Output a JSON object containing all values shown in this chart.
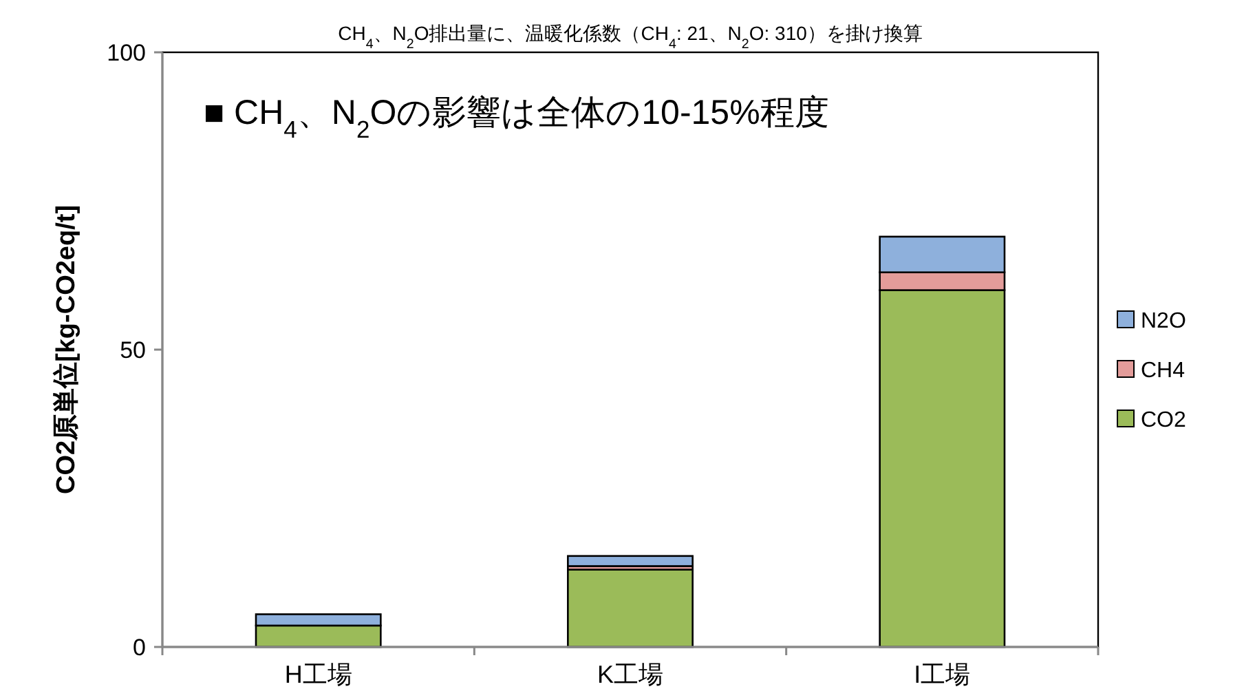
{
  "chart_data": {
    "type": "bar",
    "stacked": true,
    "title": "CH$_{4}$、N$_{2}$O排出量に、温暖化係数（CH$_{4}$: 21、N$_{2}$O: 310）を掛け換算",
    "ylabel": "CO2原単位[kg-CO2eq/t]",
    "categories": [
      "H工場",
      "K工場",
      "I工場"
    ],
    "series": [
      {
        "name": "CO2",
        "color": "#9bbb59",
        "values": [
          3.6,
          13.0,
          60.0
        ]
      },
      {
        "name": "CH4",
        "color": "#e39c9a",
        "values": [
          null,
          0.6,
          3.0
        ]
      },
      {
        "name": "N2O",
        "color": "#8eb0dc",
        "values": [
          1.9,
          1.7,
          6.0
        ]
      }
    ],
    "ylim": [
      0,
      100
    ],
    "yticks": [
      0,
      50,
      100
    ],
    "legend": "right",
    "annotations": [
      "■ CH$_{4}$、N$_{2}$Oの影響は全体の10-15%程度"
    ]
  }
}
